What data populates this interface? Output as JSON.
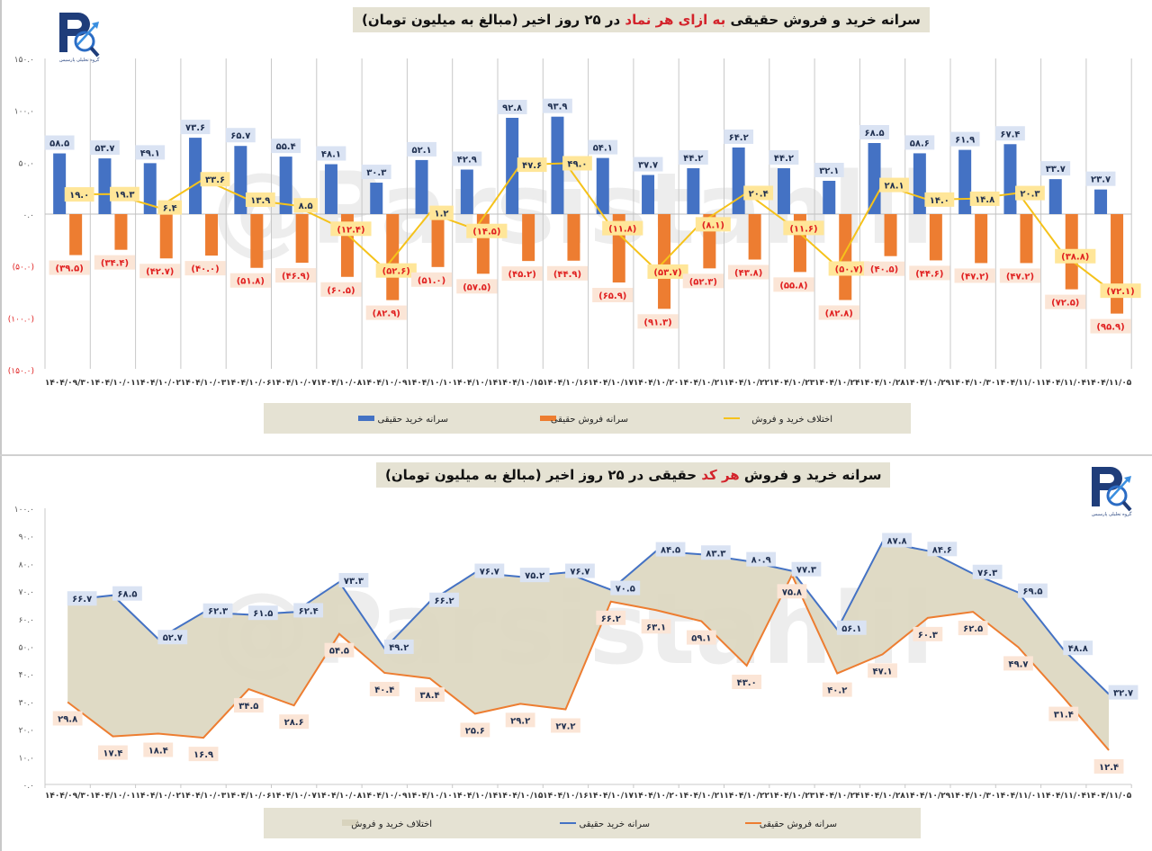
{
  "colors": {
    "buy": "#4472c4",
    "sell": "#ed7d31",
    "diff": "#f5c21b",
    "area": "#dcd6bf",
    "title_bg": "#e5e2d3",
    "buy_label_bg": "#dae3f3",
    "sell_label_bg": "#fbe5d6",
    "diff_label_bg": "#ffe699",
    "negative_text": "#e02020",
    "highlight": "#d3232b"
  },
  "watermark": "@Parsistahlil",
  "logo": {
    "caption": "گروه تحلیلی پارسیس",
    "icon": "pa-magnifier-logo"
  },
  "chart_data": [
    {
      "type": "bar",
      "title": {
        "part1": "سرانه خرید و فروش حقیقی ",
        "highlight": "به ازای هر نماد",
        "part2": " در ۲۵ روز اخیر (مبالغ به میلیون تومان)"
      },
      "ylim": [
        -150,
        150
      ],
      "y_ticks": [
        150,
        100,
        50,
        0,
        -50,
        -100,
        -150
      ],
      "y_tick_labels": [
        "۱۵۰.۰",
        "۱۰۰.۰",
        "۵۰.۰",
        "۰.۰",
        "(۵۰.۰)",
        "(۱۰۰.۰)",
        "(۱۵۰.۰)"
      ],
      "grid": "vertical",
      "legend_position": "bottom",
      "categories": [
        "۱۴۰۴/۰۹/۳۰",
        "۱۴۰۴/۱۰/۰۱",
        "۱۴۰۴/۱۰/۰۲",
        "۱۴۰۴/۱۰/۰۳",
        "۱۴۰۴/۱۰/۰۶",
        "۱۴۰۴/۱۰/۰۷",
        "۱۴۰۴/۱۰/۰۸",
        "۱۴۰۴/۱۰/۰۹",
        "۱۴۰۴/۱۰/۱۰",
        "۱۴۰۴/۱۰/۱۴",
        "۱۴۰۴/۱۰/۱۵",
        "۱۴۰۴/۱۰/۱۶",
        "۱۴۰۴/۱۰/۱۷",
        "۱۴۰۴/۱۰/۲۰",
        "۱۴۰۴/۱۰/۲۱",
        "۱۴۰۴/۱۰/۲۲",
        "۱۴۰۴/۱۰/۲۳",
        "۱۴۰۴/۱۰/۲۴",
        "۱۴۰۴/۱۰/۲۸",
        "۱۴۰۴/۱۰/۲۹",
        "۱۴۰۴/۱۰/۳۰",
        "۱۴۰۴/۱۱/۰۱",
        "۱۴۰۴/۱۱/۰۴",
        "۱۴۰۴/۱۱/۰۵"
      ],
      "series": [
        {
          "name": "سرانه خرید حقیقی",
          "type": "bar",
          "values": [
            58.5,
            53.7,
            49.1,
            73.6,
            65.7,
            55.4,
            48.1,
            30.3,
            52.1,
            42.9,
            92.8,
            93.9,
            54.1,
            37.7,
            44.2,
            64.2,
            44.2,
            32.1,
            68.5,
            58.6,
            61.9,
            67.4,
            33.7,
            23.7
          ],
          "labels": [
            "۵۸.۵",
            "۵۳.۷",
            "۴۹.۱",
            "۷۳.۶",
            "۶۵.۷",
            "۵۵.۴",
            "۴۸.۱",
            "۳۰.۳",
            "۵۲.۱",
            "۴۲.۹",
            "۹۲.۸",
            "۹۳.۹",
            "۵۴.۱",
            "۳۷.۷",
            "۴۴.۲",
            "۶۴.۲",
            "۴۴.۲",
            "۳۲.۱",
            "۶۸.۵",
            "۵۸.۶",
            "۶۱.۹",
            "۶۷.۴",
            "۳۳.۷",
            "۲۳.۷"
          ]
        },
        {
          "name": "سرانه فروش حقیقی",
          "type": "bar",
          "values": [
            -39.5,
            -34.4,
            -42.7,
            -40.0,
            -51.8,
            -46.9,
            -60.5,
            -82.9,
            -51.0,
            -57.5,
            -45.2,
            -44.9,
            -65.9,
            -91.3,
            -52.3,
            -43.8,
            -55.8,
            -82.8,
            -40.5,
            -44.6,
            -47.2,
            -47.2,
            -72.5,
            -95.9
          ],
          "labels": [
            "(۳۹.۵)",
            "(۳۴.۴)",
            "(۴۲.۷)",
            "(۴۰.۰)",
            "(۵۱.۸)",
            "(۴۶.۹)",
            "(۶۰.۵)",
            "(۸۲.۹)",
            "(۵۱.۰)",
            "(۵۷.۵)",
            "(۴۵.۲)",
            "(۴۴.۹)",
            "(۶۵.۹)",
            "(۹۱.۳)",
            "(۵۲.۳)",
            "(۴۳.۸)",
            "(۵۵.۸)",
            "(۸۲.۸)",
            "(۴۰.۵)",
            "(۴۴.۶)",
            "(۴۷.۲)",
            "(۴۷.۲)",
            "(۷۲.۵)",
            "(۹۵.۹)"
          ]
        },
        {
          "name": "اختلاف خرید و فروش",
          "type": "line",
          "values": [
            19.0,
            19.3,
            6.4,
            33.6,
            13.9,
            8.5,
            -12.4,
            -52.6,
            1.2,
            -14.5,
            47.6,
            49.0,
            -11.8,
            -53.7,
            -8.1,
            20.4,
            -11.6,
            -50.7,
            28.1,
            14.0,
            14.8,
            20.3,
            -38.8,
            -72.1
          ],
          "labels": [
            "۱۹.۰",
            "۱۹.۳",
            "۶.۴",
            "۳۳.۶",
            "۱۳.۹",
            "۸.۵",
            "(۱۲.۴)",
            "(۵۲.۶)",
            "۱.۲",
            "(۱۴.۵)",
            "۴۷.۶",
            "۴۹.۰",
            "(۱۱.۸)",
            "(۵۳.۷)",
            "(۸.۱)",
            "۲۰.۴",
            "(۱۱.۶)",
            "(۵۰.۷)",
            "۲۸.۱",
            "۱۴.۰",
            "۱۴.۸",
            "۲۰.۳",
            "(۳۸.۸)",
            "(۷۲.۱)"
          ]
        }
      ],
      "legend": [
        "سرانه خرید حقیقی",
        "سرانه فروش حقیقی",
        "اختلاف خرید و فروش"
      ]
    },
    {
      "type": "area",
      "title": {
        "part1": "سرانه خرید و فروش ",
        "highlight": "هر کد",
        "part2": " حقیقی در ۲۵ روز اخیر (مبالغ به میلیون تومان)"
      },
      "ylim": [
        0,
        100
      ],
      "y_ticks": [
        100,
        90,
        80,
        70,
        60,
        50,
        40,
        30,
        20,
        10,
        0
      ],
      "y_tick_labels": [
        "۱۰۰.۰",
        "۹۰.۰",
        "۸۰.۰",
        "۷۰.۰",
        "۶۰.۰",
        "۵۰.۰",
        "۴۰.۰",
        "۳۰.۰",
        "۲۰.۰",
        "۱۰.۰",
        "۰.۰"
      ],
      "grid": "none",
      "legend_position": "bottom",
      "categories": [
        "۱۴۰۴/۰۹/۳۰",
        "۱۴۰۴/۱۰/۰۱",
        "۱۴۰۴/۱۰/۰۲",
        "۱۴۰۴/۱۰/۰۳",
        "۱۴۰۴/۱۰/۰۶",
        "۱۴۰۴/۱۰/۰۷",
        "۱۴۰۴/۱۰/۰۸",
        "۱۴۰۴/۱۰/۰۹",
        "۱۴۰۴/۱۰/۱۰",
        "۱۴۰۴/۱۰/۱۴",
        "۱۴۰۴/۱۰/۱۵",
        "۱۴۰۴/۱۰/۱۶",
        "۱۴۰۴/۱۰/۱۷",
        "۱۴۰۴/۱۰/۲۰",
        "۱۴۰۴/۱۰/۲۱",
        "۱۴۰۴/۱۰/۲۲",
        "۱۴۰۴/۱۰/۲۳",
        "۱۴۰۴/۱۰/۲۴",
        "۱۴۰۴/۱۰/۲۸",
        "۱۴۰۴/۱۰/۲۹",
        "۱۴۰۴/۱۰/۳۰",
        "۱۴۰۴/۱۱/۰۱",
        "۱۴۰۴/۱۱/۰۴",
        "۱۴۰۴/۱۱/۰۵"
      ],
      "series": [
        {
          "name": "سرانه خرید حقیقی",
          "type": "line",
          "values": [
            66.7,
            68.5,
            52.7,
            62.3,
            61.5,
            62.4,
            73.3,
            49.2,
            66.2,
            76.7,
            75.2,
            76.7,
            70.5,
            84.5,
            83.3,
            80.9,
            77.3,
            56.1,
            87.8,
            84.6,
            76.3,
            69.5,
            48.8,
            32.7
          ],
          "labels": [
            "۶۶.۷",
            "۶۸.۵",
            "۵۲.۷",
            "۶۲.۳",
            "۶۱.۵",
            "۶۲.۴",
            "۷۳.۳",
            "۴۹.۲",
            "۶۶.۲",
            "۷۶.۷",
            "۷۵.۲",
            "۷۶.۷",
            "۷۰.۵",
            "۸۴.۵",
            "۸۳.۳",
            "۸۰.۹",
            "۷۷.۳",
            "۵۶.۱",
            "۸۷.۸",
            "۸۴.۶",
            "۷۶.۳",
            "۶۹.۵",
            "۴۸.۸",
            "۳۲.۷"
          ]
        },
        {
          "name": "سرانه فروش حقیقی",
          "type": "line",
          "values": [
            29.8,
            17.4,
            18.4,
            16.9,
            34.5,
            28.6,
            54.5,
            40.4,
            38.4,
            25.6,
            29.2,
            27.2,
            66.2,
            63.1,
            59.1,
            43.0,
            75.8,
            40.2,
            47.1,
            60.3,
            62.5,
            49.7,
            31.4,
            12.4
          ],
          "labels": [
            "۲۹.۸",
            "۱۷.۴",
            "۱۸.۴",
            "۱۶.۹",
            "۳۴.۵",
            "۲۸.۶",
            "۵۴.۵",
            "۴۰.۴",
            "۳۸.۴",
            "۲۵.۶",
            "۲۹.۲",
            "۲۷.۲",
            "۶۶.۲",
            "۶۳.۱",
            "۵۹.۱",
            "۴۳.۰",
            "۷۵.۸",
            "۴۰.۲",
            "۴۷.۱",
            "۶۰.۳",
            "۶۲.۵",
            "۴۹.۷",
            "۳۱.۴",
            "۱۲.۴"
          ]
        }
      ],
      "legend": [
        "اختلاف خرید و فروش",
        "سرانه خرید حقیقی",
        "سرانه فروش حقیقی"
      ]
    }
  ]
}
